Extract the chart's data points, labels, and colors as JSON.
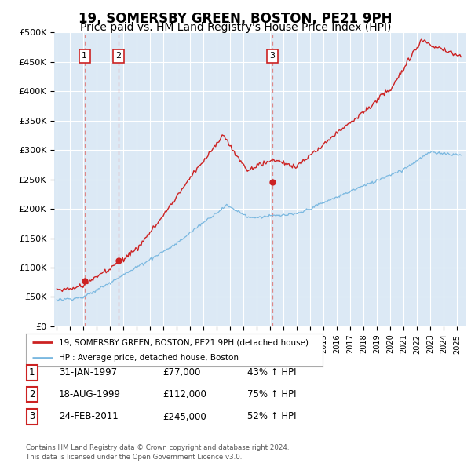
{
  "title": "19, SOMERSBY GREEN, BOSTON, PE21 9PH",
  "subtitle": "Price paid vs. HM Land Registry's House Price Index (HPI)",
  "background_color": "#ffffff",
  "plot_bg_color": "#dce9f5",
  "ylim": [
    0,
    500000
  ],
  "yticks": [
    0,
    50000,
    100000,
    150000,
    200000,
    250000,
    300000,
    350000,
    400000,
    450000,
    500000
  ],
  "ytick_labels": [
    "£0",
    "£50K",
    "£100K",
    "£150K",
    "£200K",
    "£250K",
    "£300K",
    "£350K",
    "£400K",
    "£450K",
    "£500K"
  ],
  "xlim_start": 1994.8,
  "xlim_end": 2025.7,
  "sale_dates": [
    1997.08,
    1999.63,
    2011.15
  ],
  "sale_prices": [
    77000,
    112000,
    245000
  ],
  "sale_labels": [
    "1",
    "2",
    "3"
  ],
  "legend_line1": "19, SOMERSBY GREEN, BOSTON, PE21 9PH (detached house)",
  "legend_line2": "HPI: Average price, detached house, Boston",
  "table_rows": [
    [
      "1",
      "31-JAN-1997",
      "£77,000",
      "43% ↑ HPI"
    ],
    [
      "2",
      "18-AUG-1999",
      "£112,000",
      "75% ↑ HPI"
    ],
    [
      "3",
      "24-FEB-2011",
      "£245,000",
      "52% ↑ HPI"
    ]
  ],
  "footer": "Contains HM Land Registry data © Crown copyright and database right 2024.\nThis data is licensed under the Open Government Licence v3.0.",
  "hpi_line_color": "#7ab8e0",
  "price_line_color": "#cc2222",
  "sale_marker_color": "#cc2222",
  "dashed_line_color": "#dd8888",
  "grid_color": "#ffffff",
  "title_fontsize": 12,
  "subtitle_fontsize": 10
}
